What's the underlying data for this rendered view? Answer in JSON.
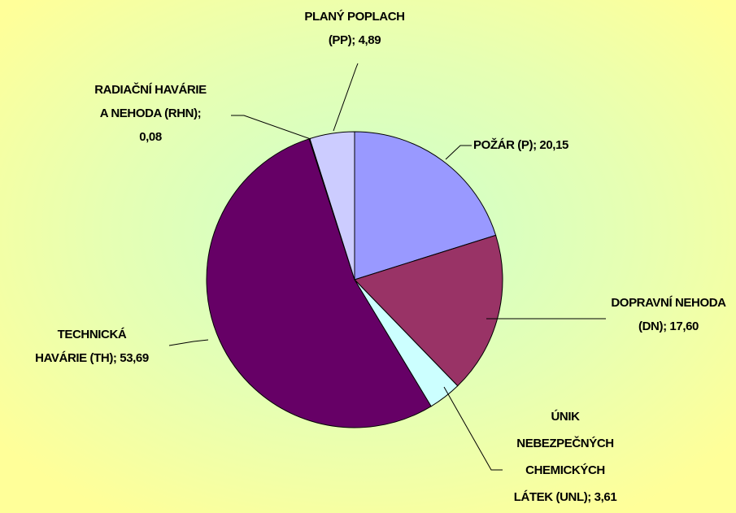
{
  "chart_data": {
    "type": "pie",
    "values": [
      20.15,
      17.6,
      3.61,
      53.69,
      0.08,
      4.89
    ],
    "value_labels": [
      "POŽÁR (P); 20,15",
      "DOPRAVNÍ NEHODA (DN); 17,60",
      "ÚNIK NEBEZPEČNÝCH CHEMICKÝCH LÁTEK (UNL); 3,61",
      "TECHNICKÁ HAVÁRIE (TH); 53,69",
      "RADIAČNÍ HAVÁRIE A NEHODA (RHN); 0,08",
      "PLANÝ POPLACH (PP); 4,89"
    ],
    "colors": [
      "#9999ff",
      "#993366",
      "#ccffff",
      "#660066",
      "#ff8080",
      "#ccccff"
    ]
  }
}
